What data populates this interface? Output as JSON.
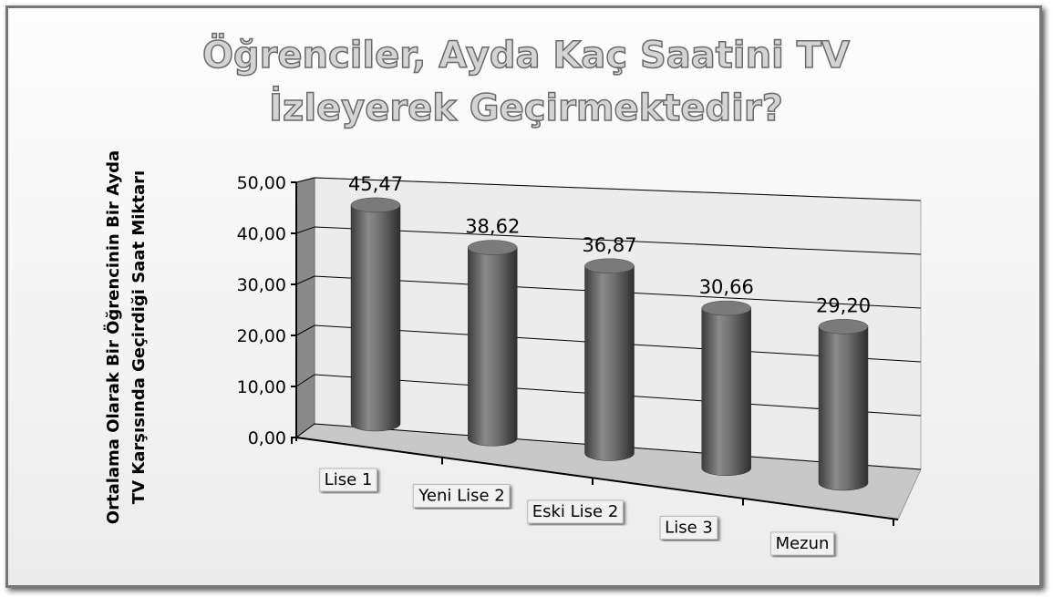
{
  "chart_data": {
    "type": "bar3d",
    "title": "Öğrenciler, Ayda Kaç Saatini TV İzleyerek Geçirmektedir?",
    "ylabel": [
      "Ortalama Olarak Bir Öğrencinin Bir Ayda",
      "TV Karşısında Geçirdiği Saat Miktarı"
    ],
    "categories": [
      "Lise 1",
      "Yeni Lise 2",
      "Eski Lise 2",
      "Lise 3",
      "Mezun"
    ],
    "values": [
      45.47,
      38.62,
      36.87,
      30.66,
      29.2
    ],
    "value_labels": [
      "45,47",
      "38,62",
      "36,87",
      "30,66",
      "29,20"
    ],
    "color": "#707070",
    "ylim": [
      0,
      50
    ],
    "yticks": [
      {
        "value": 0,
        "label": "0,00"
      },
      {
        "value": 10,
        "label": "10,00"
      },
      {
        "value": 20,
        "label": "20,00"
      },
      {
        "value": 30,
        "label": "30,00"
      },
      {
        "value": 40,
        "label": "40,00"
      },
      {
        "value": 50,
        "label": "50,00"
      }
    ],
    "grid": true
  }
}
